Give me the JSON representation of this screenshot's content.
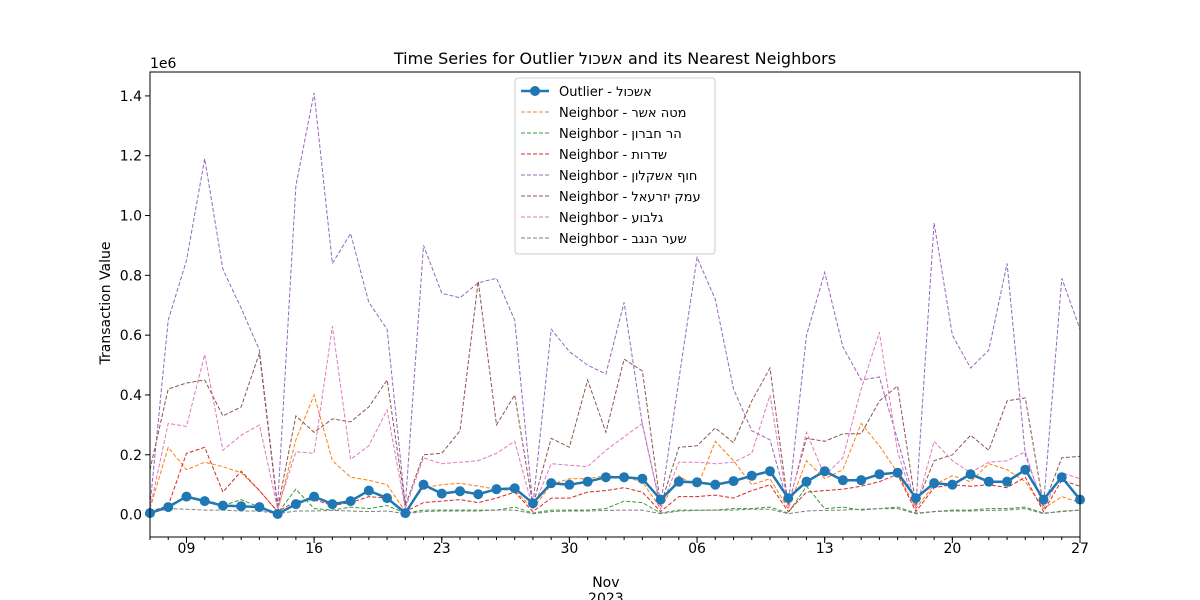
{
  "chart_data": {
    "type": "line",
    "title": "Time Series for Outlier אשכול and its Nearest Neighbors",
    "ylabel": "Transaction Value",
    "xlabel": "",
    "y_scale_label": "1e6",
    "ylim": [
      -75000,
      1480000
    ],
    "yticks": [
      0,
      200000,
      400000,
      600000,
      800000,
      1000000,
      1200000,
      1400000
    ],
    "ytick_labels": [
      "0.0",
      "0.2",
      "0.4",
      "0.6",
      "0.8",
      "1.0",
      "1.2",
      "1.4"
    ],
    "x_start": "2023-10-07",
    "x_end": "2023-11-27",
    "xticks": [
      "2023-10-09",
      "2023-10-16",
      "2023-10-23",
      "2023-10-30",
      "2023-11-06",
      "2023-11-13",
      "2023-11-20",
      "2023-11-27"
    ],
    "xtick_labels": [
      "09",
      "16",
      "23",
      "30",
      "06",
      "13",
      "20",
      "27"
    ],
    "x_month_label": "Nov",
    "x_month_date": "2023-11-01",
    "x_year_label": "2023",
    "legend_position": "top-center",
    "series": [
      {
        "name": "Outlier - אשכול",
        "color": "#1f77b4",
        "outlier": true,
        "values": [
          5000,
          25000,
          60000,
          45000,
          30000,
          28000,
          25000,
          2000,
          35000,
          60000,
          35000,
          45000,
          80000,
          55000,
          5000,
          100000,
          70000,
          78000,
          68000,
          85000,
          88000,
          38000,
          105000,
          100000,
          110000,
          125000,
          125000,
          120000,
          50000,
          110000,
          108000,
          100000,
          112000,
          130000,
          145000,
          55000,
          110000,
          145000,
          115000,
          115000,
          135000,
          140000,
          55000,
          105000,
          100000,
          135000,
          110000,
          110000,
          150000,
          50000,
          125000,
          50000
        ]
      },
      {
        "name": "Neighbor - מטה אשר",
        "color": "#ff7f0e",
        "values": [
          20000,
          225000,
          150000,
          175000,
          160000,
          140000,
          80000,
          10000,
          250000,
          400000,
          180000,
          125000,
          115000,
          100000,
          10000,
          90000,
          100000,
          105000,
          95000,
          85000,
          80000,
          20000,
          100000,
          120000,
          120000,
          130000,
          125000,
          110000,
          20000,
          130000,
          90000,
          245000,
          180000,
          100000,
          120000,
          20000,
          180000,
          120000,
          150000,
          305000,
          230000,
          140000,
          20000,
          100000,
          130000,
          110000,
          170000,
          150000,
          110000,
          20000,
          60000,
          40000
        ]
      },
      {
        "name": "Neighbor - הר חברון",
        "color": "#2ca02c",
        "values": [
          5000,
          30000,
          60000,
          50000,
          30000,
          50000,
          25000,
          5000,
          85000,
          20000,
          15000,
          25000,
          20000,
          30000,
          5000,
          15000,
          15000,
          15000,
          15000,
          15000,
          25000,
          5000,
          15000,
          15000,
          15000,
          20000,
          45000,
          40000,
          5000,
          15000,
          15000,
          15000,
          20000,
          20000,
          25000,
          5000,
          95000,
          20000,
          25000,
          15000,
          20000,
          25000,
          5000,
          10000,
          15000,
          15000,
          20000,
          20000,
          25000,
          5000,
          10000,
          15000
        ]
      },
      {
        "name": "Neighbor - שדרות",
        "color": "#d62728",
        "values": [
          10000,
          30000,
          205000,
          225000,
          75000,
          145000,
          80000,
          10000,
          45000,
          50000,
          30000,
          40000,
          60000,
          55000,
          10000,
          40000,
          45000,
          50000,
          40000,
          55000,
          75000,
          10000,
          55000,
          55000,
          75000,
          80000,
          90000,
          75000,
          10000,
          60000,
          60000,
          65000,
          55000,
          80000,
          100000,
          10000,
          75000,
          80000,
          85000,
          95000,
          110000,
          135000,
          10000,
          90000,
          100000,
          95000,
          100000,
          90000,
          125000,
          10000,
          115000,
          95000
        ]
      },
      {
        "name": "Neighbor - חוף אשקלון",
        "color": "#9467bd",
        "values": [
          30000,
          650000,
          850000,
          1190000,
          820000,
          690000,
          550000,
          30000,
          1100000,
          1410000,
          840000,
          940000,
          710000,
          620000,
          30000,
          900000,
          740000,
          725000,
          775000,
          790000,
          650000,
          30000,
          620000,
          545000,
          500000,
          470000,
          710000,
          300000,
          30000,
          450000,
          860000,
          720000,
          420000,
          280000,
          250000,
          30000,
          600000,
          810000,
          560000,
          450000,
          460000,
          250000,
          30000,
          975000,
          600000,
          490000,
          550000,
          840000,
          200000,
          30000,
          790000,
          620000
        ]
      },
      {
        "name": "Neighbor - עמק יזרעאל",
        "color": "#8c564b",
        "values": [
          150000,
          420000,
          440000,
          450000,
          330000,
          360000,
          540000,
          20000,
          330000,
          275000,
          320000,
          310000,
          360000,
          450000,
          30000,
          200000,
          205000,
          280000,
          780000,
          300000,
          400000,
          30000,
          255000,
          225000,
          450000,
          275000,
          520000,
          480000,
          30000,
          225000,
          230000,
          290000,
          240000,
          380000,
          490000,
          30000,
          255000,
          245000,
          270000,
          270000,
          380000,
          430000,
          30000,
          180000,
          200000,
          265000,
          215000,
          380000,
          390000,
          30000,
          190000,
          195000
        ]
      },
      {
        "name": "Neighbor - גלבוע",
        "color": "#e377c2",
        "values": [
          20000,
          305000,
          295000,
          535000,
          215000,
          265000,
          300000,
          20000,
          210000,
          205000,
          630000,
          185000,
          230000,
          350000,
          20000,
          190000,
          170000,
          175000,
          180000,
          205000,
          245000,
          20000,
          170000,
          165000,
          160000,
          215000,
          260000,
          305000,
          20000,
          175000,
          175000,
          170000,
          175000,
          205000,
          400000,
          20000,
          275000,
          130000,
          190000,
          420000,
          610000,
          210000,
          20000,
          245000,
          180000,
          140000,
          175000,
          180000,
          210000,
          20000,
          140000,
          120000
        ]
      },
      {
        "name": "Neighbor - שער הנגב",
        "color": "#7f7f7f",
        "values": [
          5000,
          20000,
          18000,
          15000,
          15000,
          12000,
          12000,
          3000,
          12000,
          12000,
          14000,
          12000,
          10000,
          12000,
          3000,
          10000,
          12000,
          12000,
          12000,
          15000,
          15000,
          3000,
          10000,
          12000,
          12000,
          14000,
          15000,
          15000,
          3000,
          12000,
          14000,
          15000,
          15000,
          18000,
          18000,
          3000,
          12000,
          14000,
          15000,
          18000,
          20000,
          20000,
          3000,
          10000,
          12000,
          12000,
          14000,
          15000,
          20000,
          3000,
          12000,
          15000
        ]
      }
    ]
  }
}
